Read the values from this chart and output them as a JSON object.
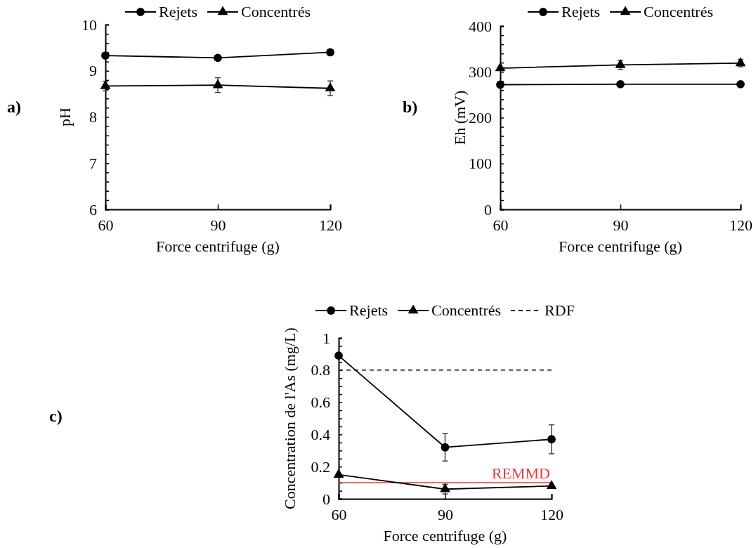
{
  "chart_data": [
    {
      "type": "line",
      "annotations": [
        "a)"
      ],
      "xlabel": "Force centrifuge (g)",
      "ylabel": "pH",
      "x": [
        60,
        90,
        120
      ],
      "xlim": [
        60,
        120
      ],
      "xticks": [
        60,
        90,
        120
      ],
      "ylim": [
        6,
        10
      ],
      "yticks": [
        6,
        {
          "value": 6.2,
          "label": null
        },
        {
          "value": 6.4,
          "label": null
        },
        {
          "value": 6.6,
          "label": null
        },
        {
          "value": 6.8,
          "label": null
        },
        7,
        {
          "value": 7.2,
          "label": null
        },
        {
          "value": 7.4,
          "label": null
        },
        {
          "value": 7.6,
          "label": null
        },
        {
          "value": 7.8,
          "label": null
        },
        8,
        {
          "value": 8.2,
          "label": null
        },
        {
          "value": 8.4,
          "label": null
        },
        {
          "value": 8.6,
          "label": null
        },
        {
          "value": 8.8,
          "label": null
        },
        9,
        {
          "value": 9.2,
          "label": null
        },
        {
          "value": 9.4,
          "label": null
        },
        {
          "value": 9.6,
          "label": null
        },
        {
          "value": 9.8,
          "label": null
        },
        10
      ],
      "legend": "top",
      "grid": false,
      "series": [
        {
          "name": "Rejets",
          "color": "#000000",
          "marker": "circle",
          "values": [
            9.33,
            9.28,
            9.4
          ]
        },
        {
          "name": "Concentrés",
          "color": "#000000",
          "marker": "triangle",
          "values": [
            8.67,
            8.69,
            8.62
          ],
          "errors": [
            0.1,
            0.16,
            0.16
          ]
        }
      ]
    },
    {
      "type": "line",
      "annotations": [
        "b)"
      ],
      "xlabel": "Force centrifuge (g)",
      "ylabel": "Eh (mV)",
      "x": [
        60,
        90,
        120
      ],
      "xlim": [
        60,
        120
      ],
      "xticks": [
        60,
        90,
        120
      ],
      "ylim": [
        0,
        400
      ],
      "yticks": [
        0,
        {
          "value": 20,
          "label": null
        },
        {
          "value": 40,
          "label": null
        },
        {
          "value": 60,
          "label": null
        },
        {
          "value": 80,
          "label": null
        },
        100,
        {
          "value": 120,
          "label": null
        },
        {
          "value": 140,
          "label": null
        },
        {
          "value": 160,
          "label": null
        },
        {
          "value": 180,
          "label": null
        },
        200,
        {
          "value": 220,
          "label": null
        },
        {
          "value": 240,
          "label": null
        },
        {
          "value": 260,
          "label": null
        },
        {
          "value": 280,
          "label": null
        },
        300,
        {
          "value": 320,
          "label": null
        },
        {
          "value": 340,
          "label": null
        },
        {
          "value": 360,
          "label": null
        },
        {
          "value": 380,
          "label": null
        },
        400
      ],
      "legend": "top",
      "grid": false,
      "series": [
        {
          "name": "Rejets",
          "color": "#000000",
          "marker": "circle",
          "values": [
            272,
            273,
            273
          ]
        },
        {
          "name": "Concentrés",
          "color": "#000000",
          "marker": "triangle",
          "values": [
            308,
            315,
            319
          ],
          "errors": [
            null,
            10,
            8
          ]
        }
      ]
    },
    {
      "type": "line",
      "annotations": [
        "c)"
      ],
      "xlabel": "Force centrifuge (g)",
      "ylabel": "Concentration de l'As (mg/L)",
      "x": [
        60,
        90,
        120
      ],
      "xlim": [
        60,
        120
      ],
      "xticks": [
        60,
        90,
        120
      ],
      "ylim": [
        0,
        1
      ],
      "yticks": [
        0,
        {
          "value": 0.05,
          "label": null
        },
        {
          "value": 0.1,
          "label": null
        },
        {
          "value": 0.15,
          "label": null
        },
        0.2,
        {
          "value": 0.25,
          "label": null
        },
        {
          "value": 0.3,
          "label": null
        },
        {
          "value": 0.35,
          "label": null
        },
        0.4,
        {
          "value": 0.45,
          "label": null
        },
        {
          "value": 0.5,
          "label": null
        },
        {
          "value": 0.55,
          "label": null
        },
        0.6,
        {
          "value": 0.65,
          "label": null
        },
        {
          "value": 0.7,
          "label": null
        },
        {
          "value": 0.75,
          "label": null
        },
        0.8,
        {
          "value": 0.85,
          "label": null
        },
        {
          "value": 0.9,
          "label": null
        },
        {
          "value": 0.95,
          "label": null
        },
        1
      ],
      "legend": "top",
      "grid": false,
      "series": [
        {
          "name": "Rejets",
          "color": "#000000",
          "marker": "circle",
          "values": [
            0.89,
            0.32,
            0.37
          ],
          "errors": [
            null,
            0.085,
            0.09
          ]
        },
        {
          "name": "Concentrés",
          "color": "#000000",
          "marker": "triangle",
          "values": [
            0.15,
            0.06,
            0.08
          ],
          "errors": [
            null,
            0.03,
            null
          ]
        }
      ],
      "ref_lines": [
        {
          "axis": "y",
          "value": 0.8,
          "label": "RDF",
          "color": "#000000",
          "line_style": "dashed"
        },
        {
          "axis": "y",
          "value": 0.1,
          "label": "REMMD",
          "color": "#e03c3c",
          "line_style": "solid"
        }
      ]
    }
  ]
}
